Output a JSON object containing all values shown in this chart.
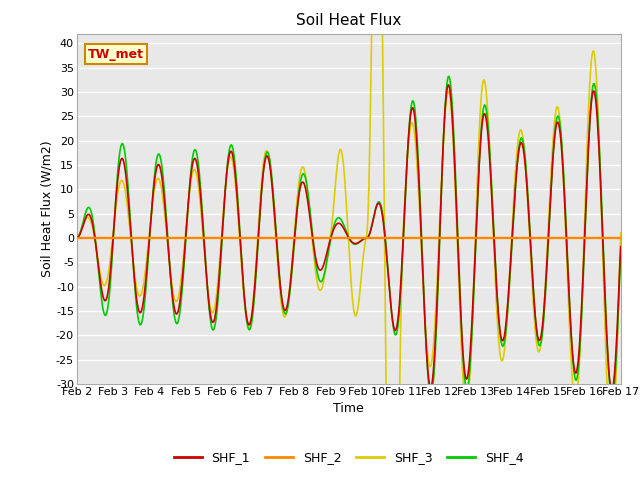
{
  "title": "Soil Heat Flux",
  "xlabel": "Time",
  "ylabel": "Soil Heat Flux (W/m2)",
  "ylim": [
    -30,
    42
  ],
  "yticks": [
    -30,
    -25,
    -20,
    -15,
    -10,
    -5,
    0,
    5,
    10,
    15,
    20,
    25,
    30,
    35,
    40
  ],
  "x_labels": [
    "Feb 2",
    "Feb 3",
    "Feb 4",
    "Feb 5",
    "Feb 6",
    "Feb 7",
    "Feb 8",
    "Feb 9",
    "Feb 10",
    "Feb 11",
    "Feb 12",
    "Feb 13",
    "Feb 14",
    "Feb 15",
    "Feb 16",
    "Feb 17"
  ],
  "series_colors": [
    "#cc0000",
    "#ff8800",
    "#ddcc00",
    "#00cc00"
  ],
  "series_names": [
    "SHF_1",
    "SHF_2",
    "SHF_3",
    "SHF_4"
  ],
  "line_width": 1.2,
  "bg_color": "#e8e8e8",
  "grid_color": "#ffffff",
  "annotation_text": "TW_met",
  "annotation_bg": "#ffffcc",
  "annotation_border": "#cc8800",
  "n_days": 15,
  "pts_per_day": 48,
  "amplitudes": [
    0,
    17,
    15,
    16,
    18,
    18,
    14,
    4,
    0,
    25,
    33,
    28,
    19,
    22,
    30,
    32
  ],
  "amp_shf3_scale": [
    1.0,
    0.7,
    0.8,
    0.85,
    0.9,
    1.05,
    1.1,
    1.8,
    19.0,
    0.9,
    0.85,
    1.3,
    1.15,
    1.1,
    1.25,
    1.35
  ],
  "amp_shf4_scale": [
    1.3,
    1.2,
    1.15,
    1.12,
    1.08,
    1.05,
    1.05,
    1.5,
    1.0,
    1.05,
    1.05,
    1.08,
    1.05,
    1.05,
    1.05,
    1.05
  ]
}
